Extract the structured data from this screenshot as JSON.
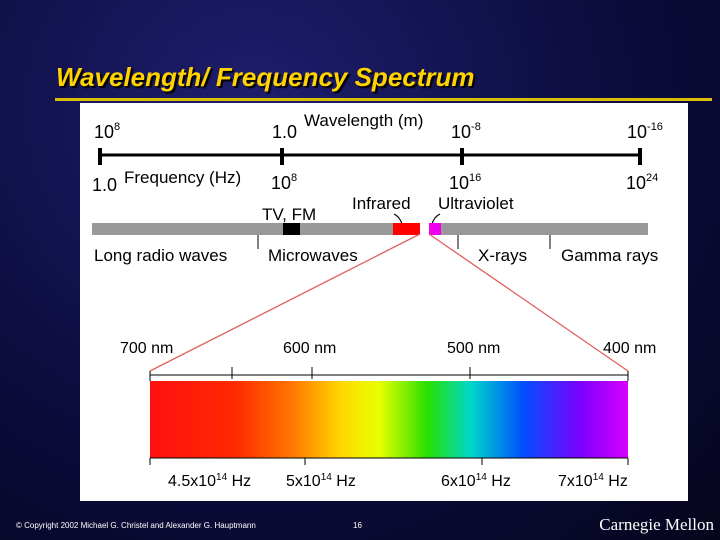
{
  "slide": {
    "title": "Wavelength/ Frequency Spectrum"
  },
  "scale": {
    "wavelength_label": "Wavelength (m)",
    "frequency_label": "Frequency (Hz)",
    "wavelength_ticks": [
      {
        "base": "10",
        "exp": "8"
      },
      {
        "base": "1.0",
        "exp": ""
      },
      {
        "base": "10",
        "exp": "-8"
      },
      {
        "base": "10",
        "exp": "-16"
      }
    ],
    "frequency_ticks": [
      {
        "base": "1.0",
        "exp": ""
      },
      {
        "base": "10",
        "exp": "8"
      },
      {
        "base": "10",
        "exp": "16"
      },
      {
        "base": "10",
        "exp": "24"
      }
    ]
  },
  "bands": {
    "tv_fm": "TV, FM",
    "infrared": "Infrared",
    "ultraviolet": "Ultraviolet",
    "long_radio": "Long radio waves",
    "microwaves": "Microwaves",
    "xrays": "X-rays",
    "gamma": "Gamma rays",
    "band_colors": {
      "tv_fm": "#000000",
      "infrared": "#ff0000",
      "ultraviolet": "#ee00ee"
    }
  },
  "visible": {
    "wavelengths": [
      "700 nm",
      "600 nm",
      "500 nm",
      "400 nm"
    ],
    "frequencies": [
      {
        "base": "4.5x10",
        "exp": "14",
        "unit": " Hz"
      },
      {
        "base": "5x10",
        "exp": "14",
        "unit": " Hz"
      },
      {
        "base": "6x10",
        "exp": "14",
        "unit": " Hz"
      },
      {
        "base": "7x10",
        "exp": "14",
        "unit": " Hz"
      }
    ]
  },
  "footer": {
    "copyright": "© Copyright 2002 Michael G. Christel and Alexander G. Hauptmann",
    "page": "16",
    "brand": "Carnegie Mellon"
  },
  "colors": {
    "title": "#ffd200",
    "zoom_lines": "#e06060"
  }
}
